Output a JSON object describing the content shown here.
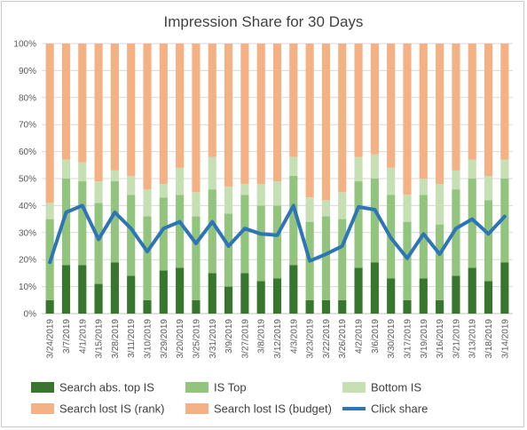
{
  "chart_data": {
    "type": "bar",
    "stacked": true,
    "title": "Impression Share for 30 Days",
    "ylim": [
      0,
      100
    ],
    "yticks": [
      "0%",
      "10%",
      "20%",
      "30%",
      "40%",
      "50%",
      "60%",
      "70%",
      "80%",
      "90%",
      "100%"
    ],
    "grid": true,
    "legend_position": "bottom",
    "categories": [
      "3/24/2019",
      "3/7/2019",
      "4/1/2019",
      "3/15/2019",
      "3/28/2019",
      "3/11/2019",
      "3/10/2019",
      "3/29/2019",
      "3/20/2019",
      "3/25/2019",
      "3/31/2019",
      "3/9/2019",
      "3/27/2019",
      "3/8/2019",
      "3/12/2019",
      "4/3/2019",
      "3/23/2019",
      "3/22/2019",
      "3/26/2019",
      "4/2/2019",
      "3/6/2019",
      "3/30/2019",
      "3/17/2019",
      "3/19/2019",
      "3/16/2019",
      "3/21/2019",
      "3/13/2019",
      "3/18/2019",
      "3/14/2019"
    ],
    "series": [
      {
        "name": "Search abs. top IS",
        "kind": "bar",
        "color": "#38762d",
        "values": [
          5,
          18,
          18,
          11,
          19,
          14,
          5,
          16,
          17,
          5,
          15,
          10,
          15,
          12,
          13,
          18,
          5,
          5,
          5,
          17,
          19,
          13,
          5,
          13,
          5,
          14,
          17,
          12,
          19
        ]
      },
      {
        "name": "IS Top",
        "kind": "bar",
        "color": "#93c47d",
        "values": [
          30,
          32,
          31,
          30,
          30,
          30,
          31,
          27,
          27,
          31,
          31,
          27,
          29,
          28,
          27,
          33,
          29,
          31,
          30,
          32,
          31,
          31,
          29,
          31,
          28,
          32,
          33,
          30,
          31
        ]
      },
      {
        "name": "Bottom IS",
        "kind": "bar",
        "color": "#c6e0b4",
        "values": [
          6,
          7,
          7,
          8,
          4,
          7,
          10,
          5,
          10,
          9,
          12,
          10,
          4,
          8,
          9,
          7,
          9,
          6,
          10,
          9,
          9,
          10,
          10,
          6,
          15,
          7,
          7,
          9,
          7
        ]
      },
      {
        "name": "Search lost IS (rank)",
        "kind": "bar",
        "color": "#f4b183",
        "values": [
          59,
          43,
          44,
          51,
          47,
          49,
          54,
          52,
          46,
          55,
          42,
          53,
          52,
          52,
          51,
          42,
          57,
          58,
          55,
          42,
          41,
          46,
          56,
          50,
          52,
          47,
          43,
          49,
          43
        ]
      },
      {
        "name": "Search lost IS (budget)",
        "kind": "bar",
        "color": "#f4b183",
        "values": [
          0,
          0,
          0,
          0,
          0,
          0,
          0,
          0,
          0,
          0,
          0,
          0,
          0,
          0,
          0,
          0,
          0,
          0,
          0,
          0,
          0,
          0,
          0,
          0,
          0,
          0,
          0,
          0,
          0
        ]
      },
      {
        "name": "Click share",
        "kind": "line",
        "color": "#2e75b6",
        "values": [
          19,
          37.5,
          40,
          27.5,
          37.5,
          31.5,
          23,
          31.5,
          34,
          26,
          34,
          25,
          31.5,
          29.5,
          29,
          40,
          19.5,
          22,
          25,
          39.5,
          38.5,
          28,
          20.5,
          29.5,
          22,
          31.5,
          35,
          29.5,
          36
        ]
      }
    ]
  }
}
